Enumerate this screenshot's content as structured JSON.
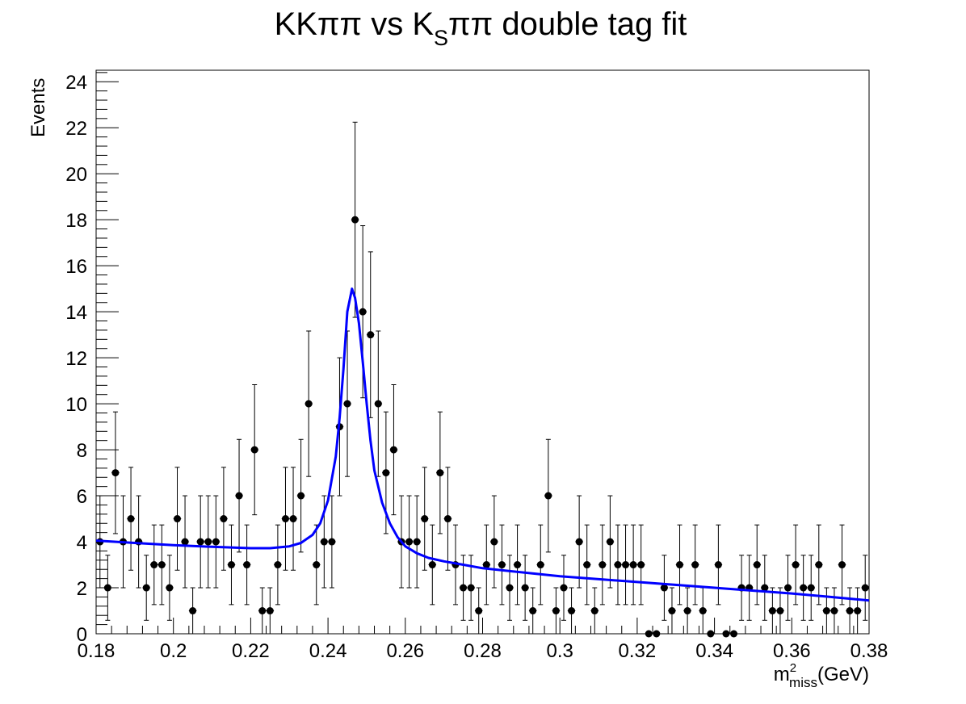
{
  "chart_data": {
    "type": "scatter",
    "title": {
      "main": "KKππ vs K",
      "sub": "S",
      "rest": "ππ double tag fit"
    },
    "xlabel": {
      "main": "m",
      "sup": "2",
      "sub": "miss",
      "rest": "(GeV)"
    },
    "ylabel": "Events",
    "xlim": [
      0.18,
      0.38
    ],
    "ylim": [
      0,
      24.5
    ],
    "x_ticks": [
      0.18,
      0.2,
      0.22,
      0.24,
      0.26,
      0.28,
      0.3,
      0.32,
      0.34,
      0.36,
      0.38
    ],
    "x_tick_labels": [
      "0.18",
      "0.2",
      "0.22",
      "0.24",
      "0.26",
      "0.28",
      "0.3",
      "0.32",
      "0.34",
      "0.36",
      "0.38"
    ],
    "y_ticks": [
      0,
      2,
      4,
      6,
      8,
      10,
      12,
      14,
      16,
      18,
      20,
      22,
      24
    ],
    "y_tick_labels": [
      "0",
      "2",
      "4",
      "6",
      "8",
      "10",
      "12",
      "14",
      "16",
      "18",
      "20",
      "22",
      "24"
    ],
    "grid": false,
    "marker_color": "#000000",
    "fit_color": "#0000ff",
    "series": [
      {
        "type": "points-with-errors",
        "bin_width": 0.002,
        "first_bin_center": 0.181,
        "values": [
          4,
          2,
          7,
          4,
          5,
          4,
          2,
          3,
          3,
          2,
          5,
          4,
          1,
          4,
          4,
          4,
          5,
          3,
          6,
          3,
          8,
          1,
          1,
          3,
          5,
          5,
          6,
          10,
          3,
          4,
          4,
          9,
          10,
          18,
          14,
          13,
          10,
          7,
          8,
          4,
          4,
          4,
          5,
          3,
          7,
          5,
          3,
          2,
          2,
          1,
          3,
          4,
          3,
          2,
          3,
          2,
          1,
          3,
          6,
          1,
          2,
          1,
          4,
          3,
          1,
          3,
          4,
          3,
          3,
          3,
          3,
          0,
          0,
          2,
          1,
          3,
          1,
          3,
          1,
          0,
          3,
          0,
          0,
          2,
          2,
          3,
          2,
          1,
          1,
          2,
          3,
          2,
          2,
          3,
          1,
          1,
          3,
          1,
          1,
          2
        ]
      },
      {
        "type": "fit-line",
        "x": [
          0.18,
          0.19,
          0.2,
          0.21,
          0.22,
          0.225,
          0.23,
          0.233,
          0.236,
          0.238,
          0.24,
          0.242,
          0.243,
          0.244,
          0.245,
          0.2462,
          0.247,
          0.248,
          0.249,
          0.25,
          0.251,
          0.252,
          0.254,
          0.256,
          0.258,
          0.26,
          0.263,
          0.266,
          0.27,
          0.275,
          0.28,
          0.3,
          0.32,
          0.34,
          0.36,
          0.37,
          0.38
        ],
        "y": [
          4.05,
          3.95,
          3.85,
          3.78,
          3.72,
          3.72,
          3.8,
          3.95,
          4.3,
          4.8,
          5.8,
          7.7,
          9.4,
          11.5,
          14.0,
          15.0,
          14.6,
          13.5,
          11.8,
          10.0,
          8.4,
          7.1,
          5.7,
          4.8,
          4.2,
          3.8,
          3.5,
          3.3,
          3.15,
          3.0,
          2.85,
          2.5,
          2.25,
          2.0,
          1.75,
          1.6,
          1.45
        ]
      }
    ]
  }
}
